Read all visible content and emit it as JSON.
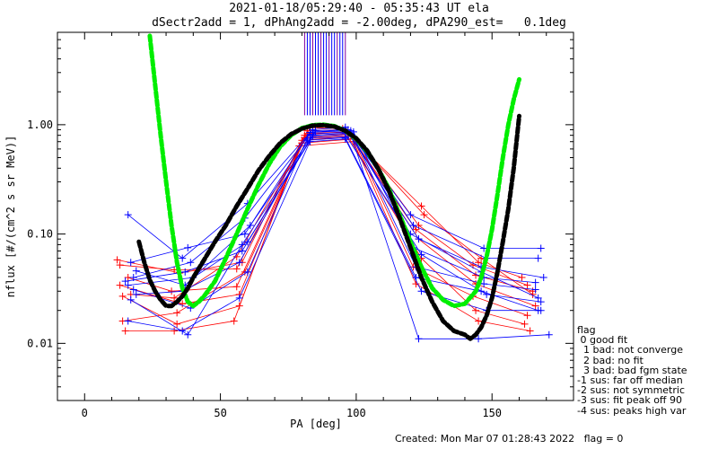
{
  "header": {
    "line1": "2021-01-18/05:29:40 - 05:35:43 UT ela",
    "line2": "dSectr2add = 1, dPhAng2add = -2.00deg, dPA290_est=   0.1deg"
  },
  "legend": {
    "title": "flag",
    "items": [
      " 0 good fit",
      "  1 bad: not converge",
      "  2 bad: no fit",
      "  3 bad: bad fgm state",
      "-1 sus: far off median",
      "-2 sus: not symmetric",
      "-3 sus: fit peak off 90",
      "-4 sus: peaks high var"
    ]
  },
  "footer": {
    "created": "Created: Mon Mar 07 01:28:43 2022",
    "flag": "flag = 0"
  },
  "colors": {
    "red_series": "#ff0000",
    "blue_series": "#0000ff",
    "green_fit": "#00ee00",
    "black_fit": "#000000",
    "purple_markers": "#8000a0"
  },
  "chart_data": {
    "type": "line",
    "xlabel": "PA [deg]",
    "ylabel": "nflux [#/(cm^2 s sr MeV)]",
    "xlim": [
      -10,
      180
    ],
    "ylim": [
      0.003,
      7
    ],
    "yscale": "log",
    "xticks": [
      0,
      50,
      100,
      150
    ],
    "xtick_labels": [
      "0",
      "50",
      "100",
      "150"
    ],
    "yticks": [
      0.01,
      0.1,
      1
    ],
    "ytick_labels": [
      "0.01",
      "0.10",
      "1.00"
    ],
    "grid": false,
    "sector_marker_pa": [
      81,
      82,
      83,
      84,
      85,
      86,
      87,
      88,
      89,
      90,
      91,
      92,
      93,
      94,
      95,
      96
    ],
    "series": [
      {
        "color": "red",
        "points": [
          [
            13,
            0.052
          ],
          [
            33,
            0.047
          ],
          [
            56,
            0.048
          ],
          [
            81,
            0.8
          ],
          [
            98,
            0.83
          ],
          [
            123,
            0.12
          ],
          [
            143,
            0.052
          ],
          [
            163,
            0.034
          ]
        ]
      },
      {
        "color": "red",
        "points": [
          [
            14,
            0.027
          ],
          [
            34,
            0.015
          ],
          [
            57,
            0.022
          ],
          [
            80,
            0.72
          ],
          [
            97,
            0.78
          ],
          [
            124,
            0.06
          ],
          [
            144,
            0.02
          ],
          [
            162,
            0.015
          ]
        ]
      },
      {
        "color": "red",
        "points": [
          [
            15,
            0.013
          ],
          [
            33,
            0.013
          ],
          [
            55,
            0.016
          ],
          [
            79,
            0.64
          ],
          [
            99,
            0.7
          ],
          [
            122,
            0.035
          ],
          [
            145,
            0.016
          ],
          [
            164,
            0.013
          ]
        ]
      },
      {
        "color": "red",
        "points": [
          [
            12,
            0.058
          ],
          [
            35,
            0.044
          ],
          [
            58,
            0.055
          ],
          [
            82,
            0.88
          ],
          [
            96,
            0.9
          ],
          [
            125,
            0.15
          ],
          [
            146,
            0.06
          ],
          [
            165,
            0.028
          ]
        ]
      },
      {
        "color": "red",
        "points": [
          [
            16,
            0.04
          ],
          [
            32,
            0.03
          ],
          [
            56,
            0.033
          ],
          [
            81,
            0.76
          ],
          [
            98,
            0.8
          ],
          [
            123,
            0.09
          ],
          [
            144,
            0.035
          ],
          [
            166,
            0.022
          ]
        ]
      },
      {
        "color": "red",
        "points": [
          [
            13,
            0.034
          ],
          [
            36,
            0.023
          ],
          [
            57,
            0.028
          ],
          [
            80,
            0.68
          ],
          [
            99,
            0.74
          ],
          [
            121,
            0.05
          ],
          [
            143,
            0.027
          ],
          [
            163,
            0.018
          ]
        ]
      },
      {
        "color": "red",
        "points": [
          [
            14,
            0.016
          ],
          [
            34,
            0.019
          ],
          [
            59,
            0.045
          ],
          [
            83,
            0.94
          ],
          [
            95,
            0.92
          ],
          [
            124,
            0.18
          ],
          [
            145,
            0.055
          ],
          [
            161,
            0.04
          ]
        ]
      },
      {
        "color": "red",
        "points": [
          [
            17,
            0.028
          ],
          [
            33,
            0.026
          ],
          [
            56,
            0.062
          ],
          [
            82,
            0.83
          ],
          [
            97,
            0.86
          ],
          [
            122,
            0.11
          ],
          [
            144,
            0.042
          ],
          [
            165,
            0.03
          ]
        ]
      },
      {
        "color": "blue",
        "points": [
          [
            16,
            0.15
          ],
          [
            36,
            0.06
          ],
          [
            60,
            0.19
          ],
          [
            84,
            0.9
          ],
          [
            96,
            0.95
          ],
          [
            120,
            0.15
          ],
          [
            147,
            0.074
          ],
          [
            168,
            0.074
          ]
        ]
      },
      {
        "color": "blue",
        "points": [
          [
            17,
            0.055
          ],
          [
            38,
            0.075
          ],
          [
            59,
            0.1
          ],
          [
            83,
            0.85
          ],
          [
            98,
            0.88
          ],
          [
            121,
            0.12
          ],
          [
            148,
            0.06
          ],
          [
            167,
            0.06
          ]
        ]
      },
      {
        "color": "blue",
        "points": [
          [
            15,
            0.037
          ],
          [
            37,
            0.045
          ],
          [
            58,
            0.07
          ],
          [
            84,
            0.8
          ],
          [
            97,
            0.84
          ],
          [
            123,
            0.09
          ],
          [
            146,
            0.05
          ],
          [
            169,
            0.04
          ]
        ]
      },
      {
        "color": "blue",
        "points": [
          [
            18,
            0.031
          ],
          [
            39,
            0.021
          ],
          [
            60,
            0.045
          ],
          [
            82,
            0.75
          ],
          [
            99,
            0.78
          ],
          [
            122,
            0.05
          ],
          [
            147,
            0.035
          ],
          [
            166,
            0.031
          ]
        ]
      },
      {
        "color": "blue",
        "points": [
          [
            16,
            0.016
          ],
          [
            36,
            0.013
          ],
          [
            57,
            0.026
          ],
          [
            83,
            0.7
          ],
          [
            96,
            0.74
          ],
          [
            124,
            0.03
          ],
          [
            148,
            0.02
          ],
          [
            168,
            0.02
          ]
        ]
      },
      {
        "color": "blue",
        "points": [
          [
            19,
            0.046
          ],
          [
            37,
            0.034
          ],
          [
            61,
            0.12
          ],
          [
            85,
            0.88
          ],
          [
            97,
            0.9
          ],
          [
            120,
            0.1
          ],
          [
            146,
            0.045
          ],
          [
            167,
            0.026
          ]
        ]
      },
      {
        "color": "blue",
        "points": [
          [
            17,
            0.025
          ],
          [
            38,
            0.012
          ],
          [
            58,
            0.08
          ],
          [
            84,
            0.78
          ],
          [
            98,
            0.82
          ],
          [
            123,
            0.011
          ],
          [
            145,
            0.011
          ],
          [
            171,
            0.012
          ]
        ]
      },
      {
        "color": "blue",
        "points": [
          [
            18,
            0.04
          ],
          [
            39,
            0.055
          ],
          [
            59,
            0.14
          ],
          [
            83,
            0.82
          ],
          [
            99,
            0.86
          ],
          [
            121,
            0.075
          ],
          [
            147,
            0.04
          ],
          [
            166,
            0.036
          ]
        ]
      },
      {
        "color": "blue",
        "points": [
          [
            16,
            0.034
          ],
          [
            40,
            0.04
          ],
          [
            60,
            0.085
          ],
          [
            85,
            0.86
          ],
          [
            95,
            0.89
          ],
          [
            124,
            0.065
          ],
          [
            148,
            0.028
          ],
          [
            168,
            0.024
          ]
        ]
      },
      {
        "color": "blue",
        "points": [
          [
            19,
            0.028
          ],
          [
            36,
            0.03
          ],
          [
            57,
            0.055
          ],
          [
            82,
            0.72
          ],
          [
            96,
            0.76
          ],
          [
            122,
            0.04
          ],
          [
            146,
            0.03
          ],
          [
            167,
            0.02
          ]
        ]
      }
    ],
    "fits": [
      {
        "color": "green",
        "style": "thick-dashed",
        "x": [
          24,
          26,
          28,
          30,
          32,
          34,
          36,
          38,
          40,
          42,
          44,
          48,
          52,
          56,
          60,
          64,
          68,
          72,
          76,
          80,
          84,
          88,
          92,
          96,
          100,
          104,
          108,
          112,
          116,
          120,
          124,
          128,
          132,
          136,
          140,
          144,
          146,
          148,
          150,
          152,
          154,
          156,
          158,
          160
        ],
        "y": [
          6.5,
          2.3,
          0.8,
          0.3,
          0.12,
          0.055,
          0.032,
          0.024,
          0.022,
          0.024,
          0.027,
          0.037,
          0.06,
          0.1,
          0.17,
          0.28,
          0.44,
          0.63,
          0.8,
          0.93,
          0.99,
          1.0,
          0.97,
          0.88,
          0.74,
          0.57,
          0.4,
          0.26,
          0.15,
          0.085,
          0.05,
          0.032,
          0.025,
          0.022,
          0.023,
          0.03,
          0.04,
          0.062,
          0.11,
          0.23,
          0.5,
          1.0,
          1.7,
          2.6
        ]
      },
      {
        "color": "black",
        "style": "thick-dashed",
        "x": [
          20,
          22,
          24,
          26,
          28,
          30,
          32,
          34,
          36,
          38,
          40,
          44,
          48,
          52,
          56,
          60,
          64,
          68,
          72,
          76,
          80,
          84,
          88,
          92,
          96,
          100,
          104,
          108,
          112,
          116,
          120,
          124,
          128,
          132,
          136,
          140,
          142,
          144,
          146,
          148,
          150,
          152,
          154,
          156,
          158,
          160
        ],
        "y": [
          0.085,
          0.055,
          0.038,
          0.03,
          0.025,
          0.022,
          0.022,
          0.024,
          0.027,
          0.032,
          0.04,
          0.058,
          0.085,
          0.12,
          0.18,
          0.26,
          0.38,
          0.52,
          0.68,
          0.82,
          0.92,
          0.98,
          0.99,
          0.96,
          0.88,
          0.75,
          0.58,
          0.4,
          0.25,
          0.14,
          0.075,
          0.04,
          0.024,
          0.016,
          0.013,
          0.012,
          0.011,
          0.012,
          0.014,
          0.018,
          0.026,
          0.045,
          0.085,
          0.17,
          0.4,
          1.2
        ]
      }
    ]
  }
}
